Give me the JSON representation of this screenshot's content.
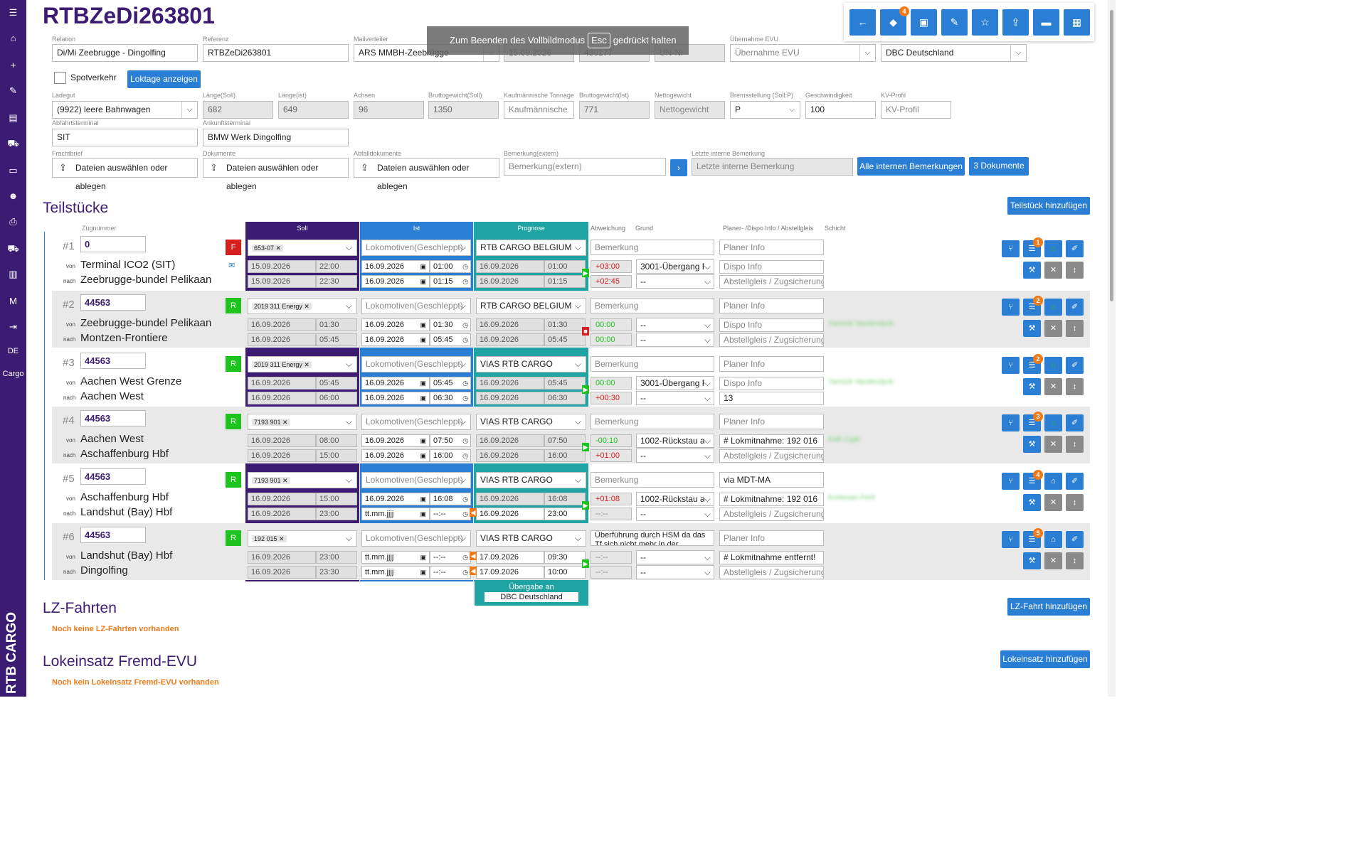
{
  "sidebar": {
    "items": [
      {
        "icon": "menu-icon",
        "glyph": "☰"
      },
      {
        "icon": "home-icon",
        "glyph": "⌂"
      },
      {
        "icon": "plus-icon",
        "glyph": "+"
      },
      {
        "icon": "pencil-icon",
        "glyph": "✎"
      },
      {
        "icon": "document-icon",
        "glyph": "▤"
      },
      {
        "icon": "train-icon",
        "glyph": "⛟"
      },
      {
        "icon": "archive-icon",
        "glyph": "▭"
      },
      {
        "icon": "users-icon",
        "glyph": "☻"
      },
      {
        "icon": "print-icon",
        "glyph": "⎙"
      },
      {
        "icon": "train-front-icon",
        "glyph": "⛟"
      },
      {
        "icon": "book-icon",
        "glyph": "▥"
      },
      {
        "icon": "m-icon",
        "glyph": "M"
      },
      {
        "icon": "logout-icon",
        "glyph": "⇥"
      },
      {
        "icon": "language",
        "glyph": "DE"
      },
      {
        "icon": "cargo",
        "glyph": "Cargo"
      }
    ],
    "logo": "RTB CARGO"
  },
  "page": {
    "title": "RTBZeDi263801"
  },
  "toolbar": {
    "buttons": [
      {
        "name": "back-icon",
        "glyph": "←"
      },
      {
        "name": "tag-icon",
        "glyph": "◆",
        "badge": "4"
      },
      {
        "name": "train-icon",
        "glyph": "▣"
      },
      {
        "name": "pencil-icon",
        "glyph": "✎"
      },
      {
        "name": "star-icon",
        "glyph": "☆"
      },
      {
        "name": "upload-icon",
        "glyph": "⇪"
      },
      {
        "name": "archive-icon",
        "glyph": "▬"
      },
      {
        "name": "save-icon",
        "glyph": "▦"
      }
    ]
  },
  "fullscreen": {
    "pre": "Zum Beenden des Vollbildmodus",
    "key": "Esc",
    "post": "gedrückt halten"
  },
  "form": {
    "relation_label": "Relation",
    "relation": "Di/Mi Zeebrugge - Dingolfing",
    "referenz_label": "Referenz",
    "referenz": "RTBZeDi263801",
    "mailverteiler_label": "Mailverteiler",
    "mailverteiler": "ARS MMBH-Zeebrügge",
    "date_hidden": "15.09.2026",
    "num_hidden": "430177",
    "un_placeholder": "UN-Nr",
    "uebernahme_label": "Übernahme EVU",
    "uebernahme_placeholder": "Übernahme EVU",
    "uebergabe": "DBC Deutschland",
    "spotverkehr": "Spotverkehr",
    "loktage_button": "Loktage anzeigen",
    "ladegut_label": "Ladegut",
    "ladegut": "(9922) leere Bahnwagen",
    "laenge_soll_label": "Länge(Soll)",
    "laenge_soll": "682",
    "laenge_ist_label": "Länge(ist)",
    "laenge_ist": "649",
    "achsen_label": "Achsen",
    "achsen": "96",
    "brutto_soll_label": "Bruttogewicht(Soll)",
    "brutto_soll": "1350",
    "kfm_label": "Kaufmännische Tonnage",
    "kfm_placeholder": "Kaufmännische",
    "brutto_ist_label": "Bruttogewicht(Ist)",
    "brutto_ist": "771",
    "netto_label": "Nettogewicht",
    "netto_placeholder": "Nettogewicht",
    "brems_label": "Bremsstellung (Soll:P)",
    "brems": "P",
    "geschw_label": "Geschwindigkeit",
    "geschw": "100",
    "kv_label": "KV-Profil",
    "kv_placeholder": "KV-Profil",
    "abfahrt_label": "Abfahrtsterminal",
    "abfahrt": "SIT",
    "ankunft_label": "Ankunftsterminal",
    "ankunft": "BMW Werk Dingolfing",
    "frachtbrief_label": "Frachtbrief",
    "dokumente_label": "Dokumente",
    "abfall_label": "Abfalldokumente",
    "upload_text": "Dateien auswählen oder ablegen",
    "bem_ext_label": "Bemerkung(extern)",
    "bem_ext_placeholder": "Bemerkung(extern)",
    "letzte_label": "Letzte interne Bemerkung",
    "letzte_placeholder": "Letzte interne Bemerkung",
    "alle_button": "Alle internen Bemerkungen",
    "dok_button": "3 Dokumente"
  },
  "teilstuecke": {
    "heading": "Teilstücke",
    "add_button": "Teilstück hinzufügen",
    "zugnummer_label": "Zugnummer",
    "col_soll": "Soll",
    "col_ist": "Ist",
    "col_prognose": "Prognose",
    "col_abweichung": "Abweichung",
    "col_grund": "Grund",
    "col_planer": "Planer- /Dispo Info / Abstellgleis",
    "col_schicht": "Schicht",
    "von": "von",
    "nach": "nach",
    "loks_placeholder": "Lokomotiven(Geschleppt)",
    "bem_placeholder": "Bemerkung",
    "planer_placeholder": "Planer Info",
    "dispo_placeholder": "Dispo Info",
    "abstell_placeholder": "Abstellgleis / Zugsicherung",
    "uebergabe_label": "Übergabe an",
    "uebergabe_value": "DBC Deutschland",
    "rows": [
      {
        "num": "#1",
        "zug": "0",
        "tag": "F",
        "tagcolor": "#d62020",
        "von": "Terminal ICO2 (SIT)",
        "nach": "Zeebrugge-bundel Pelikaan",
        "lok": "653-07",
        "soll_d1": "15.09.2026",
        "soll_t1": "22:00",
        "soll_d2": "15.09.2026",
        "soll_t2": "22:30",
        "ist_d1": "16.09.2026",
        "ist_t1": "01:00",
        "ist_d2": "16.09.2026",
        "ist_t2": "01:15",
        "prog_evu": "RTB CARGO BELGIUM",
        "prog_d1": "16.09.2026",
        "prog_t1": "01:00",
        "prog_d2": "16.09.2026",
        "prog_t2": "01:15",
        "dev1": "+03:00",
        "dev1c": "#d62020",
        "dev2": "+02:45",
        "dev2c": "#d62020",
        "grund1": "3001-Übergang F",
        "grund2": "--",
        "bem": "Bemerkung",
        "planer": "Planer Info",
        "dispo": "Dispo Info",
        "abstell": "Abstellgleis / Zugsicherung",
        "schicht": "",
        "badge": "1",
        "marker": "play",
        "mail": true
      },
      {
        "num": "#2",
        "zug": "44563",
        "tag": "R",
        "tagcolor": "#1ec31e",
        "von": "Zeebrugge-bundel Pelikaan",
        "nach": "Montzen-Frontiere",
        "lok": "2019 311 Energy",
        "soll_d1": "16.09.2026",
        "soll_t1": "01:30",
        "soll_d2": "16.09.2026",
        "soll_t2": "05:45",
        "ist_d1": "16.09.2026",
        "ist_t1": "01:30",
        "ist_d2": "16.09.2026",
        "ist_t2": "05:45",
        "prog_evu": "RTB CARGO BELGIUM",
        "prog_d1": "16.09.2026",
        "prog_t1": "01:30",
        "prog_d2": "16.09.2026",
        "prog_t2": "05:45",
        "dev1": "00:00",
        "dev1c": "#1ec31e",
        "dev2": "00:00",
        "dev2c": "#1ec31e",
        "grund1": "--",
        "grund2": "--",
        "bem": "Bemerkung",
        "planer": "Planer Info",
        "dispo": "Dispo Info",
        "abstell": "Abstellgleis / Zugsicherung",
        "schicht": "Yannick Vandendyck",
        "badge": "2",
        "marker": "stop",
        "mail": false
      },
      {
        "num": "#3",
        "zug": "44563",
        "tag": "R",
        "tagcolor": "#1ec31e",
        "von": "Aachen West Grenze",
        "nach": "Aachen West",
        "lok": "2019 311 Energy",
        "soll_d1": "16.09.2026",
        "soll_t1": "05:45",
        "soll_d2": "16.09.2026",
        "soll_t2": "06:00",
        "ist_d1": "16.09.2026",
        "ist_t1": "05:45",
        "ist_d2": "16.09.2026",
        "ist_t2": "06:30",
        "prog_evu": "VIAS RTB CARGO",
        "prog_d1": "16.09.2026",
        "prog_t1": "05:45",
        "prog_d2": "16.09.2026",
        "prog_t2": "06:30",
        "dev1": "00:00",
        "dev1c": "#1ec31e",
        "dev2": "+00:30",
        "dev2c": "#d62020",
        "grund1": "3001-Übergang F",
        "grund2": "--",
        "bem": "Bemerkung",
        "planer": "Planer Info",
        "dispo": "Dispo Info",
        "abstell": "13",
        "schicht": "Yannick Vandendyck",
        "badge": "2",
        "marker": "play",
        "mail": false
      },
      {
        "num": "#4",
        "zug": "44563",
        "tag": "R",
        "tagcolor": "#1ec31e",
        "von": "Aachen West",
        "nach": "Aschaffenburg Hbf",
        "lok": "7193 901",
        "soll_d1": "16.09.2026",
        "soll_t1": "08:00",
        "soll_d2": "16.09.2026",
        "soll_t2": "15:00",
        "ist_d1": "16.09.2026",
        "ist_t1": "07:50",
        "ist_d2": "16.09.2026",
        "ist_t2": "16:00",
        "prog_evu": "VIAS RTB CARGO",
        "prog_d1": "16.09.2026",
        "prog_t1": "07:50",
        "prog_d2": "16.09.2026",
        "prog_t2": "16:00",
        "dev1": "-00:10",
        "dev1c": "#1ec31e",
        "dev2": "+01:00",
        "dev2c": "#d62020",
        "grund1": "1002-Rückstau au",
        "grund2": "--",
        "bem": "Bemerkung",
        "planer": "Planer Info",
        "dispo": "# Lokmitnahme: 192 016",
        "abstell": "Abstellgleis / Zugsicherung",
        "schicht": "Kalk Cigik",
        "badge": "3",
        "marker": "play",
        "mail": false
      },
      {
        "num": "#5",
        "zug": "44563",
        "tag": "R",
        "tagcolor": "#1ec31e",
        "von": "Aschaffenburg Hbf",
        "nach": "Landshut (Bay) Hbf",
        "lok": "7193 901",
        "soll_d1": "16.09.2026",
        "soll_t1": "15:00",
        "soll_d2": "16.09.2026",
        "soll_t2": "23:00",
        "ist_d1": "16.09.2026",
        "ist_t1": "16:08",
        "ist_d2": "tt.mm.jjjj",
        "ist_t2": "--:--",
        "prog_evu": "VIAS RTB CARGO",
        "prog_d1": "16.09.2026",
        "prog_t1": "16:08",
        "prog_d2": "16.09.2026",
        "prog_t2": "23:00",
        "dev1": "+01:08",
        "dev1c": "#d62020",
        "dev2": "--:--",
        "dev2c": "#888",
        "grund1": "1002-Rückstau au",
        "grund2": "--",
        "bem": "Bemerkung",
        "planer": "via MDT-MA",
        "dispo": "# Lokmitnahme: 192 016",
        "abstell": "Abstellgleis / Zugsicherung",
        "schicht": "Korbinian Pertl",
        "badge": "4",
        "marker": "play",
        "mail": false
      },
      {
        "num": "#6",
        "zug": "44563",
        "tag": "R",
        "tagcolor": "#1ec31e",
        "von": "Landshut (Bay) Hbf",
        "nach": "Dingolfing",
        "lok": "192 015",
        "soll_d1": "16.09.2026",
        "soll_t1": "23:00",
        "soll_d2": "16.09.2026",
        "soll_t2": "23:30",
        "ist_d1": "tt.mm.jjjj",
        "ist_t1": "--:--",
        "ist_d2": "tt.mm.jjjj",
        "ist_t2": "--:--",
        "prog_evu": "VIAS RTB CARGO",
        "prog_d1": "17.09.2026",
        "prog_t1": "09:30",
        "prog_d2": "17.09.2026",
        "prog_t2": "10:00",
        "dev1": "--:--",
        "dev1c": "#888",
        "dev2": "--:--",
        "dev2c": "#888",
        "grund1": "--",
        "grund2": "--",
        "bem": "Überführung durch HSM da das Tf sich nicht mehr in der",
        "planer": "Planer Info",
        "dispo": "# Lokmitnahme entfernt!",
        "abstell": "Abstellgleis / Zugsicherung",
        "schicht": "",
        "badge": "5",
        "marker": "play",
        "mail": false
      }
    ]
  },
  "lz": {
    "heading": "LZ-Fahrten",
    "add_button": "LZ-Fahrt hinzufügen",
    "empty": "Noch keine LZ-Fahrten vorhanden"
  },
  "lok": {
    "heading": "Lokeinsatz Fremd-EVU",
    "add_button": "Lokeinsatz hinzufügen",
    "empty": "Noch kein Lokeinsatz Fremd-EVU vorhanden"
  }
}
